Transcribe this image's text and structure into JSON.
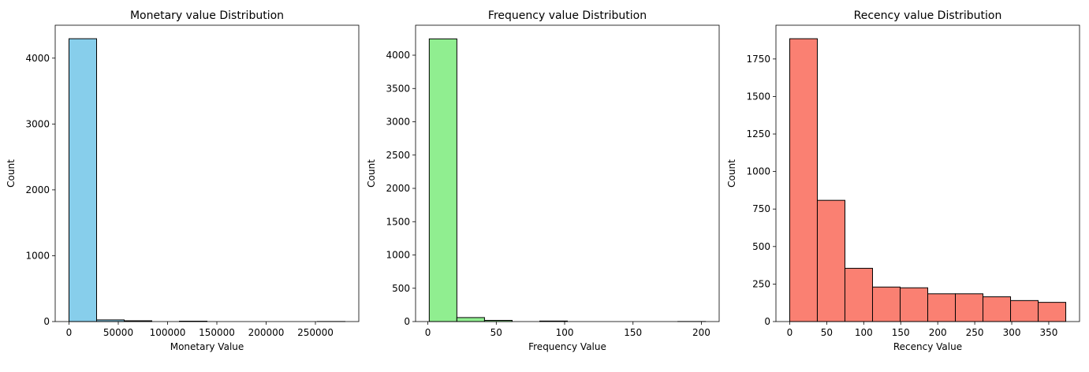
{
  "chart_data": [
    {
      "type": "bar",
      "title": "Monetary value Distribution",
      "xlabel": "Monetary Value",
      "ylabel": "Count",
      "color": "#87CEEB",
      "edge_color": "#000000",
      "xlim": [
        -14000,
        294000
      ],
      "ylim": [
        0,
        4500
      ],
      "xticks": [
        0,
        50000,
        100000,
        150000,
        200000,
        250000
      ],
      "xtick_labels": [
        "0",
        "50000",
        "100000",
        "150000",
        "200000",
        "250000"
      ],
      "yticks": [
        0,
        1000,
        2000,
        3000,
        4000
      ],
      "ytick_labels": [
        "0",
        "1000",
        "2000",
        "3000",
        "4000"
      ],
      "bin_edges": [
        0,
        28000,
        56000,
        84000,
        112000,
        140000,
        168000,
        196000,
        224000,
        252000,
        280000
      ],
      "counts": [
        4295,
        25,
        12,
        0,
        6,
        0,
        0,
        0,
        0,
        1
      ]
    },
    {
      "type": "bar",
      "title": "Frequency value Distribution",
      "xlabel": "Frequency Value",
      "ylabel": "Count",
      "color": "#90EE90",
      "edge_color": "#000000",
      "xlim": [
        -9,
        213
      ],
      "ylim": [
        0,
        4450
      ],
      "xticks": [
        0,
        50,
        100,
        150,
        200
      ],
      "xtick_labels": [
        "0",
        "50",
        "100",
        "150",
        "200"
      ],
      "yticks": [
        0,
        500,
        1000,
        1500,
        2000,
        2500,
        3000,
        3500,
        4000
      ],
      "ytick_labels": [
        "0",
        "500",
        "1000",
        "1500",
        "2000",
        "2500",
        "3000",
        "3500",
        "4000"
      ],
      "bin_edges": [
        1,
        21.2,
        41.4,
        61.6,
        81.8,
        102,
        122.2,
        142.4,
        162.6,
        182.8,
        203
      ],
      "counts": [
        4245,
        60,
        18,
        0,
        8,
        0,
        0,
        0,
        0,
        1
      ]
    },
    {
      "type": "bar",
      "title": "Recency value Distribution",
      "xlabel": "Recency Value",
      "ylabel": "Count",
      "color": "#FA8072",
      "edge_color": "#000000",
      "xlim": [
        -18.6,
        391.6
      ],
      "ylim": [
        0,
        1975
      ],
      "xticks": [
        0,
        50,
        100,
        150,
        200,
        250,
        300,
        350
      ],
      "xtick_labels": [
        "0",
        "50",
        "100",
        "150",
        "200",
        "250",
        "300",
        "350"
      ],
      "yticks": [
        0,
        250,
        500,
        750,
        1000,
        1250,
        1500,
        1750
      ],
      "ytick_labels": [
        "0",
        "250",
        "500",
        "750",
        "1000",
        "1250",
        "1500",
        "1750"
      ],
      "bin_edges": [
        0,
        37.3,
        74.6,
        111.9,
        149.2,
        186.5,
        223.8,
        261.1,
        298.4,
        335.7,
        373
      ],
      "counts": [
        1885,
        808,
        355,
        230,
        225,
        185,
        185,
        165,
        140,
        128
      ]
    }
  ]
}
